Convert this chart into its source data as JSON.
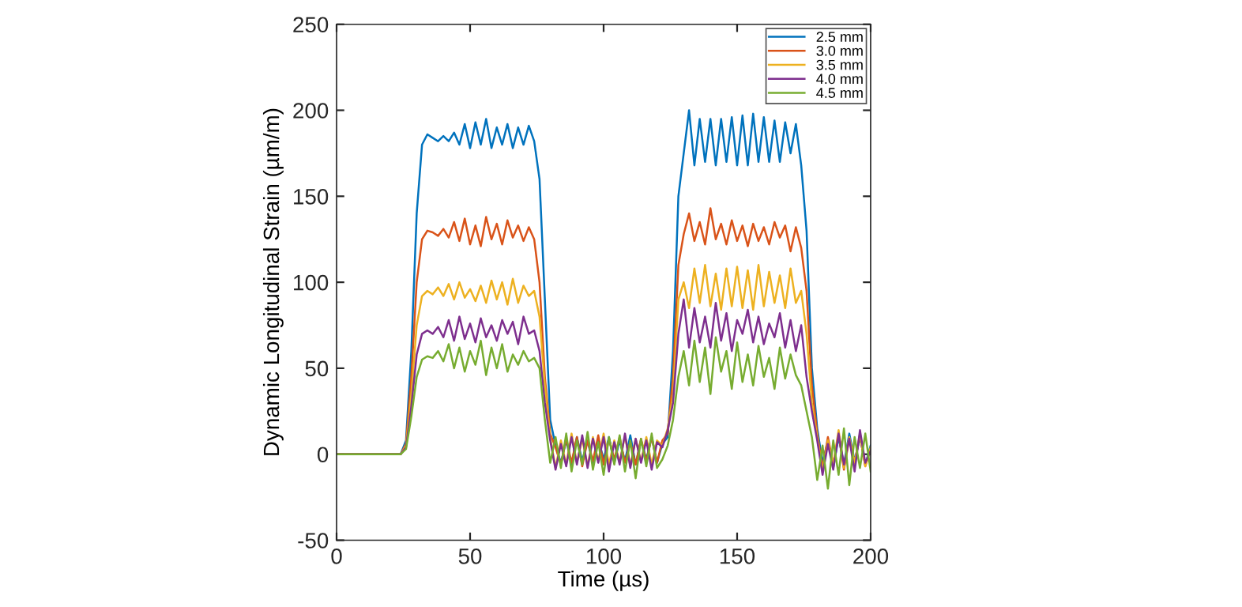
{
  "chart_data": {
    "type": "line",
    "xlabel": "Time (µs)",
    "ylabel": "Dynamic Longitudinal Strain (µm/m)",
    "x": [
      0,
      24,
      26,
      28,
      30,
      32,
      34,
      36,
      38,
      40,
      42,
      44,
      46,
      48,
      50,
      52,
      54,
      56,
      58,
      60,
      62,
      64,
      66,
      68,
      70,
      72,
      74,
      76,
      78,
      80,
      82,
      84,
      86,
      88,
      90,
      92,
      94,
      96,
      98,
      100,
      102,
      104,
      106,
      108,
      110,
      112,
      114,
      116,
      118,
      120,
      122,
      124,
      126,
      128,
      130,
      132,
      134,
      136,
      138,
      140,
      142,
      144,
      146,
      148,
      150,
      152,
      154,
      156,
      158,
      160,
      162,
      164,
      166,
      168,
      170,
      172,
      174,
      176,
      178,
      180,
      182,
      184,
      186,
      188,
      190,
      192,
      194,
      196,
      198,
      200
    ],
    "xlim": [
      0,
      200
    ],
    "xticks": [
      0,
      50,
      100,
      150,
      200
    ],
    "ylim": [
      -50,
      250
    ],
    "yticks": [
      -50,
      0,
      50,
      100,
      150,
      200,
      250
    ],
    "grid": false,
    "legend": "top right",
    "line_style": "solid",
    "marker": "none",
    "series": [
      {
        "name": "2.5 mm",
        "color": "#0072bd",
        "values": [
          0,
          0,
          8,
          60,
          140,
          180,
          186,
          184,
          182,
          185,
          182,
          187,
          180,
          192,
          178,
          193,
          180,
          195,
          178,
          190,
          180,
          192,
          178,
          190,
          180,
          191,
          182,
          160,
          90,
          20,
          5,
          -5,
          8,
          -6,
          10,
          -4,
          8,
          -6,
          9,
          -3,
          10,
          -5,
          8,
          -4,
          11,
          -6,
          8,
          -3,
          10,
          -5,
          6,
          10,
          60,
          150,
          175,
          200,
          168,
          195,
          170,
          195,
          168,
          195,
          170,
          196,
          168,
          197,
          168,
          198,
          170,
          196,
          170,
          194,
          170,
          193,
          175,
          192,
          168,
          130,
          50,
          15,
          -5,
          8,
          -8,
          10,
          -6,
          12,
          -4,
          10,
          -6,
          5
        ]
      },
      {
        "name": "3.0 mm",
        "color": "#d95319",
        "values": [
          0,
          0,
          6,
          45,
          100,
          125,
          130,
          129,
          127,
          131,
          126,
          135,
          124,
          137,
          122,
          133,
          121,
          138,
          125,
          134,
          122,
          136,
          126,
          133,
          124,
          132,
          125,
          100,
          45,
          12,
          4,
          -6,
          9,
          -5,
          10,
          -7,
          8,
          -4,
          11,
          -6,
          9,
          -3,
          10,
          -5,
          7,
          -6,
          9,
          -4,
          10,
          -5,
          8,
          12,
          45,
          110,
          128,
          140,
          124,
          135,
          122,
          143,
          125,
          134,
          122,
          136,
          124,
          133,
          121,
          134,
          124,
          132,
          122,
          135,
          126,
          133,
          118,
          132,
          120,
          95,
          40,
          12,
          -8,
          10,
          -6,
          12,
          -9,
          9,
          -5,
          11,
          -7,
          3
        ]
      },
      {
        "name": "3.5 mm",
        "color": "#edb120",
        "values": [
          0,
          0,
          5,
          35,
          75,
          92,
          95,
          93,
          97,
          92,
          99,
          90,
          100,
          91,
          96,
          89,
          98,
          88,
          101,
          90,
          100,
          87,
          102,
          88,
          98,
          92,
          95,
          80,
          40,
          10,
          -8,
          8,
          -6,
          12,
          -5,
          9,
          -7,
          10,
          -4,
          12,
          -6,
          8,
          -5,
          11,
          -7,
          9,
          -4,
          10,
          -6,
          8,
          5,
          15,
          35,
          90,
          100,
          85,
          108,
          88,
          110,
          86,
          105,
          84,
          108,
          86,
          109,
          85,
          107,
          84,
          110,
          86,
          106,
          88,
          104,
          85,
          108,
          88,
          95,
          70,
          30,
          10,
          -10,
          8,
          -6,
          14,
          -8,
          10,
          -5,
          12,
          -7,
          4
        ]
      },
      {
        "name": "4.0 mm",
        "color": "#7e2f8e",
        "values": [
          0,
          0,
          4,
          28,
          58,
          70,
          72,
          70,
          74,
          68,
          78,
          66,
          80,
          67,
          76,
          65,
          79,
          68,
          75,
          66,
          78,
          70,
          77,
          64,
          80,
          70,
          72,
          60,
          30,
          8,
          -9,
          6,
          -7,
          10,
          -6,
          11,
          -8,
          9,
          -5,
          10,
          -10,
          7,
          -6,
          12,
          -8,
          9,
          -5,
          8,
          -9,
          7,
          4,
          14,
          30,
          70,
          90,
          62,
          85,
          65,
          80,
          62,
          88,
          66,
          82,
          60,
          78,
          70,
          84,
          65,
          80,
          64,
          76,
          68,
          82,
          62,
          78,
          60,
          75,
          45,
          25,
          8,
          -12,
          6,
          -9,
          12,
          -6,
          9,
          -10,
          14,
          -5,
          2
        ]
      },
      {
        "name": "4.5 mm",
        "color": "#77ac30",
        "values": [
          0,
          0,
          3,
          22,
          45,
          55,
          57,
          56,
          60,
          54,
          64,
          50,
          62,
          48,
          60,
          52,
          66,
          46,
          62,
          50,
          64,
          48,
          58,
          52,
          60,
          54,
          56,
          50,
          20,
          -5,
          10,
          -8,
          12,
          -10,
          8,
          -6,
          13,
          -9,
          7,
          -12,
          10,
          -6,
          11,
          -10,
          8,
          -14,
          9,
          -7,
          12,
          -8,
          -3,
          5,
          20,
          45,
          60,
          40,
          66,
          42,
          62,
          35,
          68,
          48,
          60,
          38,
          65,
          42,
          58,
          40,
          63,
          45,
          56,
          38,
          62,
          44,
          58,
          46,
          40,
          25,
          10,
          -15,
          5,
          -20,
          8,
          -12,
          15,
          -18,
          10,
          -8,
          12,
          -10
        ]
      }
    ]
  }
}
